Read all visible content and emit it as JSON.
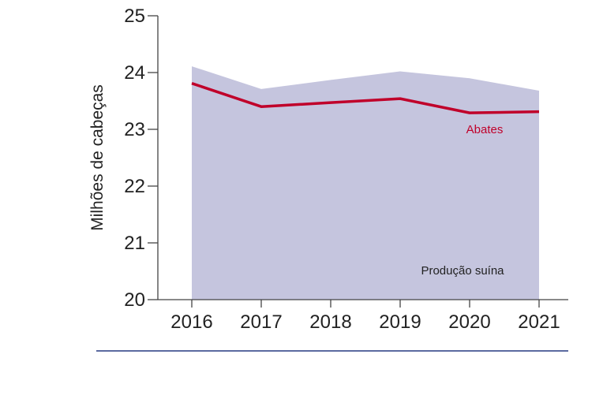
{
  "chart_data": {
    "type": "area",
    "ylabel": "Milhões de cabeças",
    "xlabel": "",
    "categories": [
      "2016",
      "2017",
      "2018",
      "2019",
      "2020",
      "2021"
    ],
    "ylim": [
      20,
      25
    ],
    "yticks": [
      "20",
      "21",
      "22",
      "23",
      "24",
      "25"
    ],
    "grid": false,
    "series": [
      {
        "name": "Produção suína",
        "kind": "area",
        "color": "#c5c5de",
        "values": [
          24.11,
          23.71,
          23.87,
          24.02,
          23.9,
          23.68
        ]
      },
      {
        "name": "Abates",
        "kind": "line",
        "color": "#c0002a",
        "values": [
          23.81,
          23.4,
          23.47,
          23.54,
          23.29,
          23.31
        ]
      }
    ]
  }
}
